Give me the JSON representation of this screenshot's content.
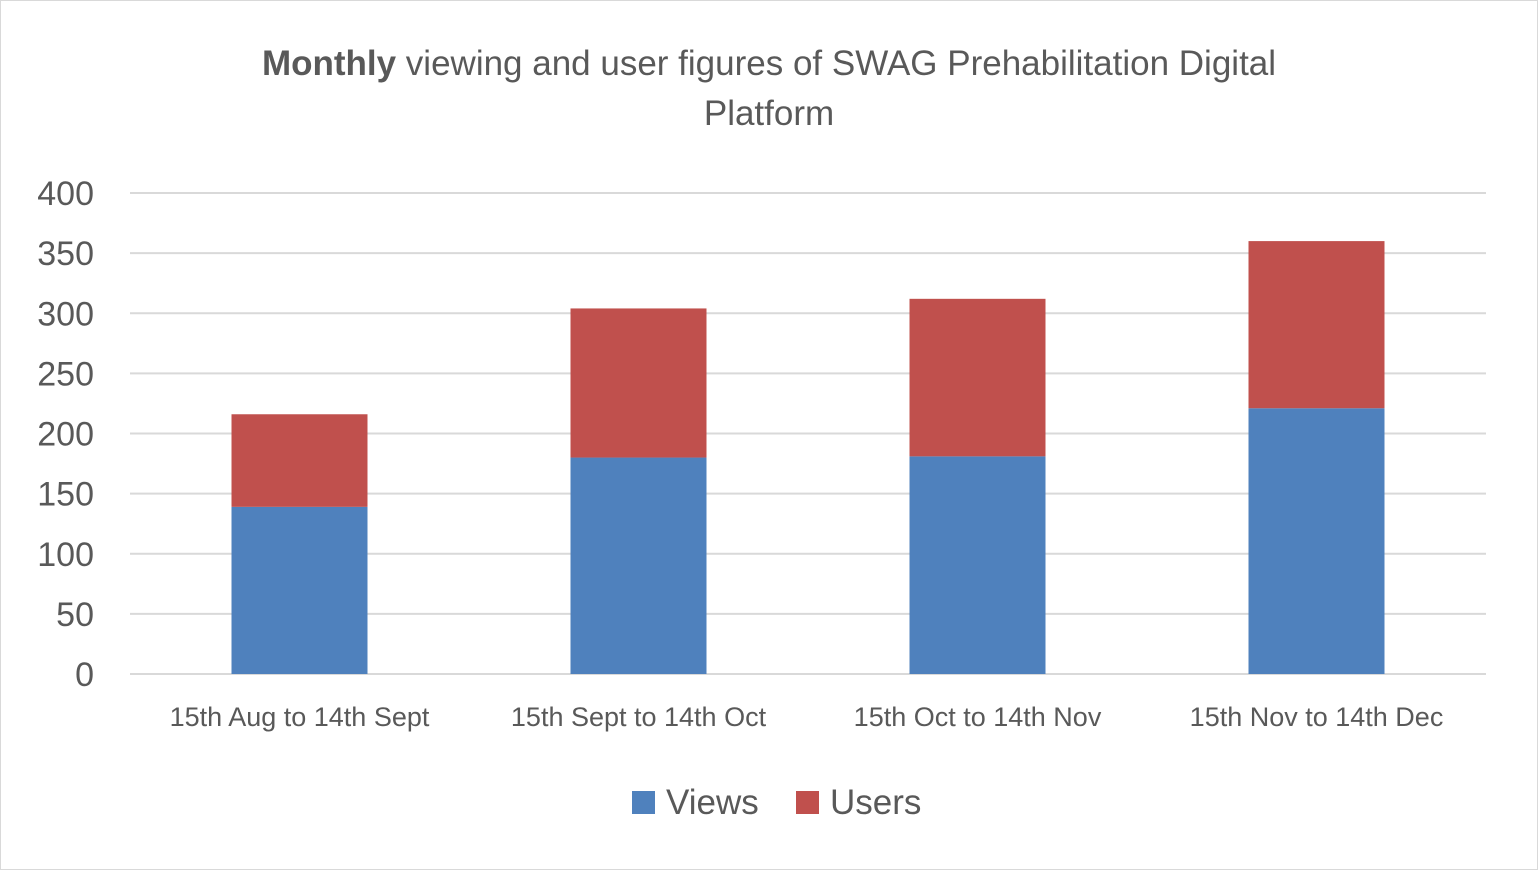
{
  "chart_data": {
    "type": "bar",
    "stacked": true,
    "title_bold": "Monthly",
    "title_rest": " viewing and user figures of SWAG Prehabilitation Digital Platform",
    "categories": [
      "15th Aug to 14th Sept",
      "15th Sept to 14th Oct",
      "15th Oct to 14th Nov",
      "15th Nov to 14th Dec"
    ],
    "series": [
      {
        "name": "Views",
        "color": "#4f81bd",
        "values": [
          139,
          180,
          181,
          221
        ]
      },
      {
        "name": "Users",
        "color": "#c0504d",
        "values": [
          77,
          124,
          131,
          139
        ]
      }
    ],
    "ylim": [
      0,
      400
    ],
    "yticks": [
      0,
      50,
      100,
      150,
      200,
      250,
      300,
      350,
      400
    ],
    "grid": true,
    "legend_position": "bottom"
  }
}
